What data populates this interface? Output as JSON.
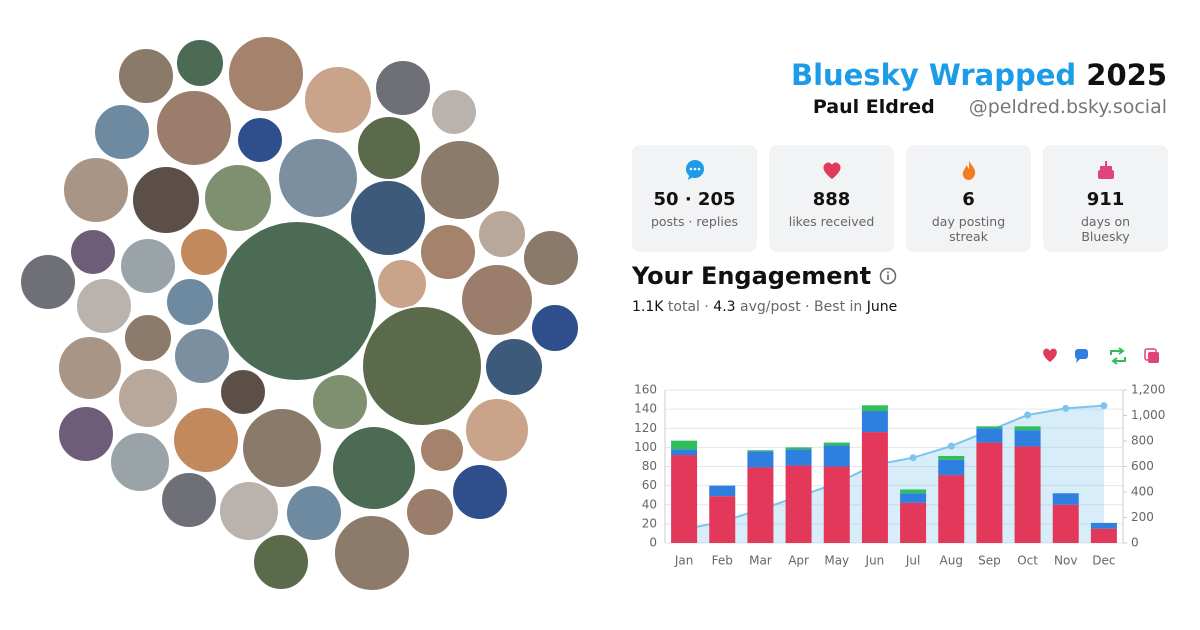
{
  "header": {
    "title_brand": "Bluesky Wrapped",
    "title_year": "2025",
    "name": "Paul Eldred",
    "handle": "@peldred.bsky.social"
  },
  "stats": [
    {
      "value": "50 · 205",
      "label": "posts · replies"
    },
    {
      "value": "888",
      "label": "likes received"
    },
    {
      "value": "6",
      "label": "day posting streak"
    },
    {
      "value": "911",
      "label": "days on Bluesky"
    }
  ],
  "engagement": {
    "title": "Your Engagement",
    "total": "1.1K",
    "total_label": "total ·",
    "avg": "4.3",
    "avg_label": "avg/post · Best in",
    "best": "June"
  },
  "chart_data": {
    "type": "bar",
    "stacked": true,
    "categories": [
      "Jan",
      "Feb",
      "Mar",
      "Apr",
      "May",
      "Jun",
      "Jul",
      "Aug",
      "Sep",
      "Oct",
      "Nov",
      "Dec"
    ],
    "series": [
      {
        "color": "#e3385a",
        "values": [
          92,
          49,
          79,
          81,
          80,
          116,
          42,
          71,
          105,
          101,
          40,
          15
        ]
      },
      {
        "color": "#2f7fe0",
        "values": [
          6,
          11,
          17,
          17,
          22,
          22,
          10,
          16,
          15,
          17,
          12,
          6
        ]
      },
      {
        "color": "#2fbf5a",
        "values": [
          9,
          0,
          1,
          2,
          3,
          6,
          4,
          4,
          2,
          4,
          0,
          0
        ]
      },
      {
        "type": "line",
        "axis": "y2",
        "color": "#7cc4ec",
        "values": [
          107,
          167,
          264,
          364,
          469,
          613,
          669,
          760,
          882,
          1004,
          1056,
          1077
        ]
      }
    ],
    "ylim": [
      0,
      160
    ],
    "yticks": [
      0,
      20,
      40,
      60,
      80,
      100,
      120,
      140,
      160
    ],
    "y2lim": [
      0,
      1200
    ],
    "y2ticks": [
      0,
      200,
      400,
      600,
      800,
      {
        "value": 1000,
        "label": "1,000"
      },
      {
        "value": 1200,
        "label": "1,200"
      }
    ],
    "grid": true
  }
}
